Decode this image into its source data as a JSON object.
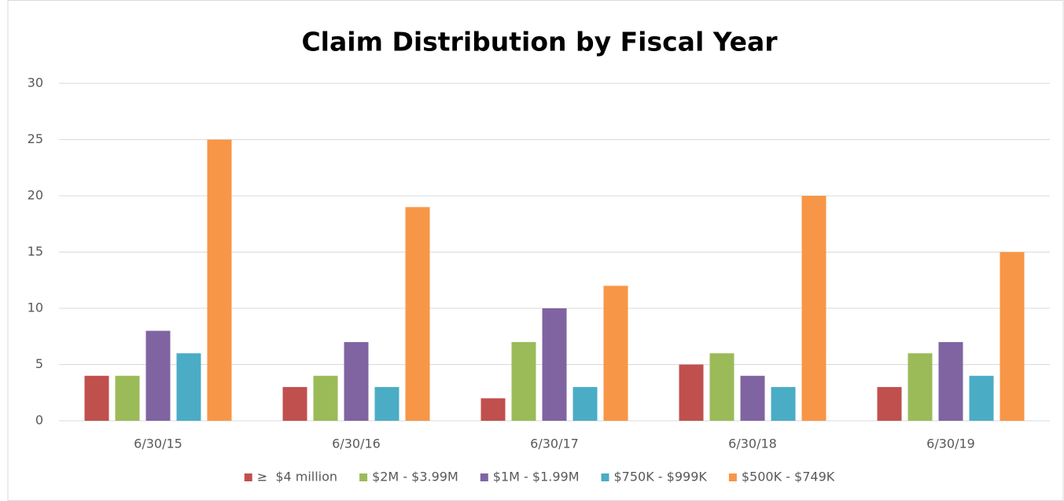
{
  "chart_data": {
    "type": "bar",
    "title": "Claim Distribution by Fiscal Year",
    "categories": [
      "6/30/15",
      "6/30/16",
      "6/30/17",
      "6/30/18",
      "6/30/19"
    ],
    "series": [
      {
        "name": "≥  $4 million",
        "color": "#c0504d",
        "values": [
          4,
          3,
          2,
          5,
          3
        ]
      },
      {
        "name": "$2M - $3.99M",
        "color": "#9bbb59",
        "values": [
          4,
          4,
          7,
          6,
          6
        ]
      },
      {
        "name": "$1M - $1.99M",
        "color": "#8064a2",
        "values": [
          8,
          7,
          10,
          4,
          7
        ]
      },
      {
        "name": "$750K - $999K",
        "color": "#4bacc6",
        "values": [
          6,
          3,
          3,
          3,
          4
        ]
      },
      {
        "name": "$500K - $749K",
        "color": "#f79646",
        "values": [
          25,
          19,
          12,
          20,
          15
        ]
      }
    ],
    "ylim": [
      0,
      30
    ],
    "yticks": [
      0,
      5,
      10,
      15,
      20,
      25,
      30
    ],
    "grid": true,
    "legend": "bottom"
  }
}
